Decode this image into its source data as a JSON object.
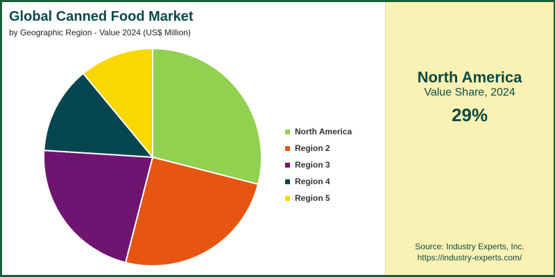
{
  "chart_data": {
    "type": "pie",
    "title": "Global Canned Food Market",
    "subtitle": "by Geographic Region - Value 2024 (US$ Million)",
    "categories": [
      "North America",
      "Region 2",
      "Region 3",
      "Region 4",
      "Region 5"
    ],
    "values": [
      29,
      25,
      22,
      13,
      11
    ],
    "unit": "%",
    "legend_position": "right",
    "colors": [
      "#92d050",
      "#e65511",
      "#701471",
      "#06474f",
      "#fad700"
    ]
  },
  "highlight": {
    "region": "North America",
    "label": "Value Share, 2024",
    "value": "29%"
  },
  "source": {
    "line1": "Source: Industry Experts, Inc.",
    "line2": "https://industry-experts.com/"
  },
  "colors": {
    "frame": "#1b5e3a",
    "title": "#0c4a45",
    "panel": "#faf1b4",
    "slice_border": "#ffffff"
  }
}
